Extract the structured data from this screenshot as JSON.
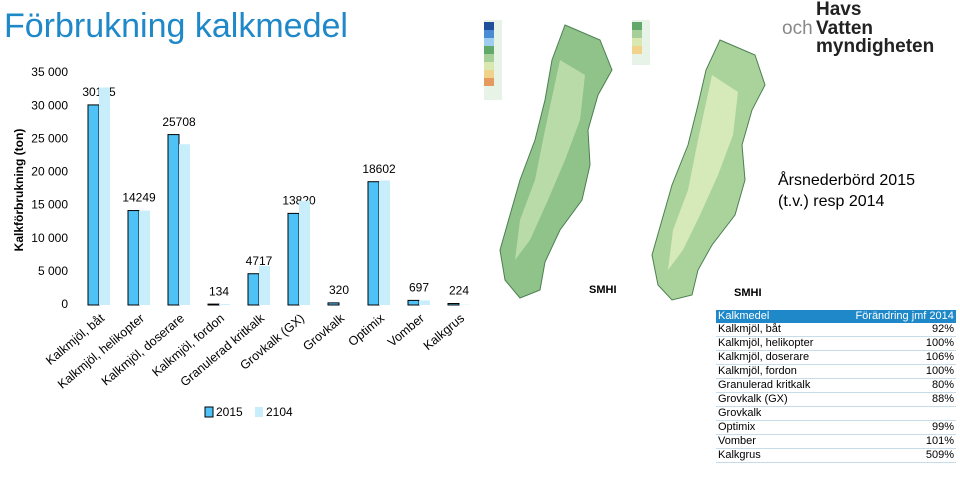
{
  "header": {
    "title": "Förbrukning kalkmedel",
    "logo": [
      "Havs",
      "och",
      "Vatten",
      "myndigheten"
    ]
  },
  "chart_data": {
    "type": "bar",
    "y_label": "Kalkförbrukning (ton)",
    "categories": [
      "Kalkmjöl, båt",
      "Kalkmjöl, helikopter",
      "Kalkmjöl, doserare",
      "Kalkmjöl, fordon",
      "Granulerad kritkalk",
      "Grovkalk (GX)",
      "Grovkalk",
      "Optimix",
      "Vomber",
      "Kalkgrus"
    ],
    "series": [
      {
        "name": "2015",
        "color": "#4fc3f7",
        "values": [
          30185,
          14249,
          25708,
          134,
          4717,
          13820,
          320,
          18602,
          697,
          224
        ],
        "labeled": true
      },
      {
        "name": "2104",
        "color": "#c8eefc",
        "values": [
          32810,
          14249,
          24253,
          134,
          5896,
          15705,
          0,
          18790,
          690,
          44
        ],
        "labeled": false
      }
    ],
    "ylim": [
      0,
      35000
    ],
    "yticks": [
      0,
      {
        "value": 5000,
        "label": "5 000"
      },
      {
        "value": 10000,
        "label": "10 000"
      },
      {
        "value": 15000,
        "label": "15 000"
      },
      {
        "value": 20000,
        "label": "20 000"
      },
      {
        "value": 25000,
        "label": "25 000"
      },
      {
        "value": 30000,
        "label": "30 000"
      },
      {
        "value": 35000,
        "label": "35 000"
      }
    ],
    "grid": false
  },
  "maps": {
    "caption": "Årsnederbörd 2015 (t.v.) resp 2014",
    "source_left": "SMHI",
    "source_right": "SMHI"
  },
  "table": {
    "headers": [
      "Kalkmedel",
      "Förändring jmf 2014"
    ],
    "rows": [
      [
        "Kalkmjöl, båt",
        "92%"
      ],
      [
        "Kalkmjöl, helikopter",
        "100%"
      ],
      [
        "Kalkmjöl, doserare",
        "106%"
      ],
      [
        "Kalkmjöl, fordon",
        "100%"
      ],
      [
        "Granulerad kritkalk",
        "80%"
      ],
      [
        "Grovkalk (GX)",
        "88%"
      ],
      [
        "Grovkalk",
        ""
      ],
      [
        "Optimix",
        "99%"
      ],
      [
        "Vomber",
        "101%"
      ],
      [
        "Kalkgrus",
        "509%"
      ]
    ]
  }
}
